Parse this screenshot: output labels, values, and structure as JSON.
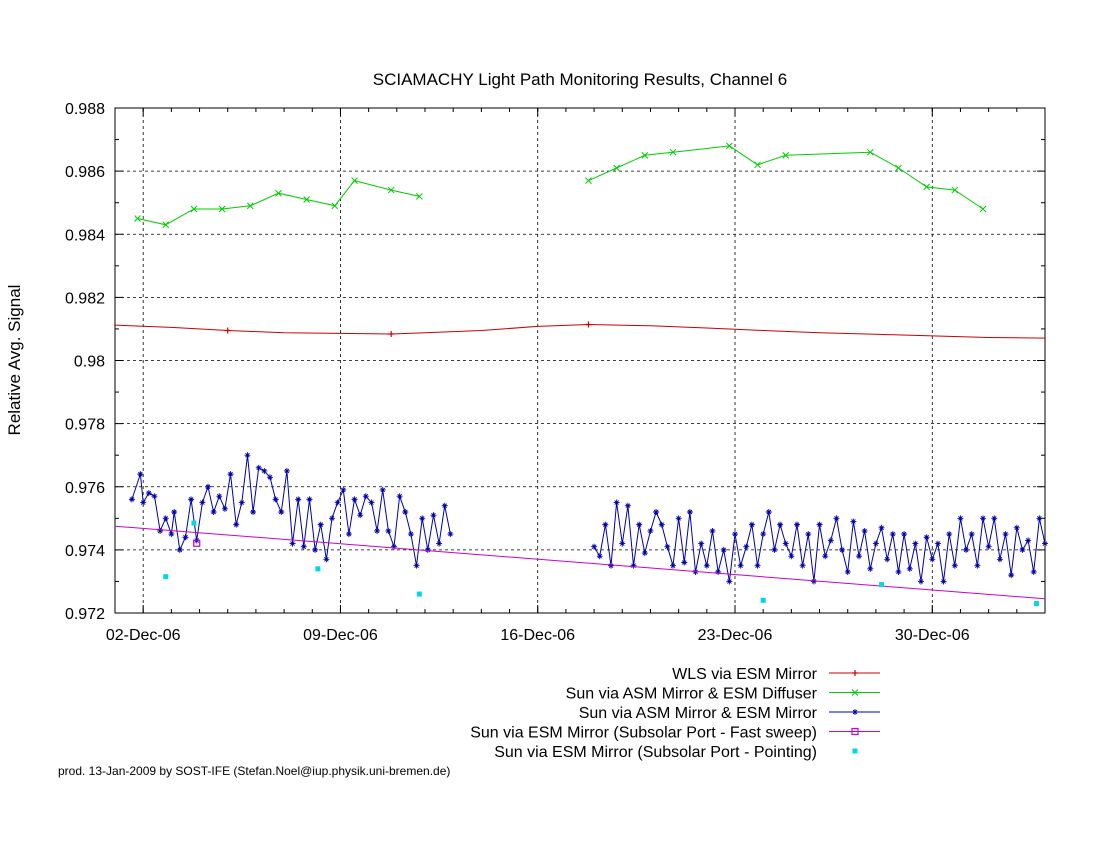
{
  "chart_data": {
    "type": "line",
    "title": "SCIAMACHY Light Path Monitoring Results, Channel 6",
    "xlabel": "",
    "ylabel": "Relative Avg. Signal",
    "x_range_days": [
      0,
      33
    ],
    "x_ticks": [
      {
        "day": 1,
        "label": "02-Dec-06"
      },
      {
        "day": 8,
        "label": "09-Dec-06"
      },
      {
        "day": 15,
        "label": "16-Dec-06"
      },
      {
        "day": 22,
        "label": "23-Dec-06"
      },
      {
        "day": 29,
        "label": "30-Dec-06"
      }
    ],
    "ylim": [
      0.972,
      0.988
    ],
    "y_ticks": [
      "0.972",
      "0.974",
      "0.976",
      "0.978",
      "0.98",
      "0.982",
      "0.984",
      "0.986",
      "0.988"
    ],
    "y_tick_values": [
      0.972,
      0.974,
      0.976,
      0.978,
      0.98,
      0.982,
      0.984,
      0.986,
      0.988
    ],
    "grid": true,
    "legend_position": "below-right",
    "series": [
      {
        "name": "WLS via ESM Mirror",
        "color": "#cc0000",
        "marker": "plus",
        "style": "line",
        "points": [
          [
            0,
            0.98112
          ],
          [
            2,
            0.98105
          ],
          [
            4,
            0.98095
          ],
          [
            6,
            0.98088
          ],
          [
            8,
            0.98086
          ],
          [
            9.8,
            0.98084
          ],
          [
            11,
            0.98088
          ],
          [
            13,
            0.98095
          ],
          [
            15,
            0.98108
          ],
          [
            16.8,
            0.98114
          ],
          [
            19,
            0.9811
          ],
          [
            21,
            0.98103
          ],
          [
            23,
            0.98095
          ],
          [
            25,
            0.98088
          ],
          [
            27,
            0.98083
          ],
          [
            29,
            0.98078
          ],
          [
            31,
            0.98073
          ],
          [
            33,
            0.98071
          ]
        ],
        "marker_indices": [
          2,
          5,
          9
        ]
      },
      {
        "name": "Sun via ASM Mirror & ESM Diffuser",
        "color": "#00cc00",
        "marker": "cross",
        "style": "line",
        "segments": [
          [
            [
              0.8,
              0.9845
            ],
            [
              1.8,
              0.9843
            ],
            [
              2.8,
              0.9848
            ],
            [
              3.8,
              0.9848
            ],
            [
              4.8,
              0.9849
            ],
            [
              5.8,
              0.9853
            ],
            [
              6.8,
              0.9851
            ],
            [
              7.8,
              0.9849
            ],
            [
              8.5,
              0.9857
            ],
            [
              9.8,
              0.9854
            ],
            [
              10.8,
              0.9852
            ]
          ],
          [
            [
              16.8,
              0.9857
            ],
            [
              17.8,
              0.9861
            ],
            [
              18.8,
              0.9865
            ],
            [
              19.8,
              0.9866
            ],
            [
              21.8,
              0.9868
            ],
            [
              22.8,
              0.9862
            ],
            [
              23.8,
              0.9865
            ],
            [
              26.8,
              0.9866
            ],
            [
              27.8,
              0.9861
            ],
            [
              28.8,
              0.9855
            ],
            [
              29.8,
              0.9854
            ],
            [
              30.8,
              0.9848
            ]
          ]
        ]
      },
      {
        "name": "Sun via ASM Mirror & ESM Mirror",
        "color": "#0000aa",
        "marker": "star",
        "style": "line",
        "segments": [
          [
            [
              0.6,
              0.9756
            ],
            [
              0.9,
              0.9764
            ],
            [
              1.0,
              0.9755
            ],
            [
              1.2,
              0.9758
            ],
            [
              1.4,
              0.9757
            ],
            [
              1.6,
              0.9746
            ],
            [
              1.8,
              0.975
            ],
            [
              2.0,
              0.9745
            ],
            [
              2.1,
              0.9752
            ],
            [
              2.3,
              0.974
            ],
            [
              2.5,
              0.9744
            ],
            [
              2.7,
              0.9756
            ],
            [
              2.9,
              0.9743
            ],
            [
              3.1,
              0.9755
            ],
            [
              3.3,
              0.976
            ],
            [
              3.5,
              0.9752
            ],
            [
              3.7,
              0.9757
            ],
            [
              3.9,
              0.9753
            ],
            [
              4.1,
              0.9764
            ],
            [
              4.3,
              0.9748
            ],
            [
              4.5,
              0.9755
            ],
            [
              4.7,
              0.977
            ],
            [
              4.9,
              0.9752
            ],
            [
              5.1,
              0.9766
            ],
            [
              5.3,
              0.9765
            ],
            [
              5.5,
              0.9763
            ],
            [
              5.7,
              0.9756
            ],
            [
              5.9,
              0.9752
            ],
            [
              6.1,
              0.9765
            ],
            [
              6.3,
              0.9742
            ],
            [
              6.5,
              0.9756
            ],
            [
              6.7,
              0.9741
            ],
            [
              6.9,
              0.9756
            ],
            [
              7.1,
              0.974
            ],
            [
              7.3,
              0.9748
            ],
            [
              7.5,
              0.9737
            ],
            [
              7.7,
              0.975
            ],
            [
              7.9,
              0.9755
            ],
            [
              8.1,
              0.9759
            ],
            [
              8.3,
              0.9745
            ],
            [
              8.5,
              0.9756
            ],
            [
              8.7,
              0.9751
            ],
            [
              8.9,
              0.9757
            ],
            [
              9.1,
              0.9755
            ],
            [
              9.3,
              0.9746
            ],
            [
              9.5,
              0.9759
            ],
            [
              9.7,
              0.9746
            ],
            [
              9.9,
              0.9741
            ],
            [
              10.1,
              0.9757
            ],
            [
              10.3,
              0.9752
            ],
            [
              10.5,
              0.9745
            ],
            [
              10.7,
              0.9735
            ],
            [
              10.9,
              0.975
            ],
            [
              11.1,
              0.974
            ],
            [
              11.3,
              0.9751
            ],
            [
              11.5,
              0.9742
            ],
            [
              11.7,
              0.9754
            ],
            [
              11.9,
              0.9745
            ]
          ],
          [
            [
              17.0,
              0.9741
            ],
            [
              17.2,
              0.9738
            ],
            [
              17.4,
              0.9748
            ],
            [
              17.6,
              0.9735
            ],
            [
              17.8,
              0.9755
            ],
            [
              18.0,
              0.9742
            ],
            [
              18.2,
              0.9754
            ],
            [
              18.4,
              0.9735
            ],
            [
              18.6,
              0.9748
            ],
            [
              18.8,
              0.9739
            ],
            [
              19.0,
              0.9746
            ],
            [
              19.2,
              0.9752
            ],
            [
              19.4,
              0.9748
            ],
            [
              19.6,
              0.9741
            ],
            [
              19.8,
              0.9735
            ],
            [
              20.0,
              0.975
            ],
            [
              20.2,
              0.9736
            ],
            [
              20.4,
              0.9752
            ],
            [
              20.6,
              0.9733
            ],
            [
              20.8,
              0.9742
            ],
            [
              21.0,
              0.9735
            ],
            [
              21.2,
              0.9746
            ],
            [
              21.4,
              0.9733
            ],
            [
              21.6,
              0.974
            ],
            [
              21.8,
              0.973
            ],
            [
              22.0,
              0.9745
            ],
            [
              22.2,
              0.9735
            ],
            [
              22.4,
              0.9741
            ],
            [
              22.6,
              0.9748
            ],
            [
              22.8,
              0.9735
            ],
            [
              23.0,
              0.9745
            ],
            [
              23.2,
              0.9752
            ],
            [
              23.4,
              0.974
            ],
            [
              23.6,
              0.9748
            ],
            [
              23.8,
              0.9742
            ],
            [
              24.0,
              0.9738
            ],
            [
              24.2,
              0.9748
            ],
            [
              24.4,
              0.9735
            ],
            [
              24.6,
              0.9745
            ],
            [
              24.8,
              0.973
            ],
            [
              25.0,
              0.9748
            ],
            [
              25.2,
              0.9738
            ],
            [
              25.4,
              0.9743
            ],
            [
              25.6,
              0.975
            ],
            [
              25.8,
              0.974
            ],
            [
              26.0,
              0.9733
            ],
            [
              26.2,
              0.9749
            ],
            [
              26.4,
              0.9738
            ],
            [
              26.6,
              0.9746
            ],
            [
              26.8,
              0.9734
            ],
            [
              27.0,
              0.9742
            ],
            [
              27.2,
              0.9747
            ],
            [
              27.4,
              0.9737
            ],
            [
              27.6,
              0.9745
            ],
            [
              27.8,
              0.9733
            ],
            [
              28.0,
              0.9745
            ],
            [
              28.2,
              0.9734
            ],
            [
              28.4,
              0.9742
            ],
            [
              28.6,
              0.973
            ],
            [
              28.8,
              0.9744
            ],
            [
              29.0,
              0.9737
            ],
            [
              29.2,
              0.9742
            ],
            [
              29.4,
              0.973
            ],
            [
              29.6,
              0.9745
            ],
            [
              29.8,
              0.9735
            ],
            [
              30.0,
              0.975
            ],
            [
              30.2,
              0.974
            ],
            [
              30.4,
              0.9745
            ],
            [
              30.6,
              0.9735
            ],
            [
              30.8,
              0.975
            ],
            [
              31.0,
              0.9741
            ],
            [
              31.2,
              0.975
            ],
            [
              31.4,
              0.9737
            ],
            [
              31.6,
              0.9745
            ],
            [
              31.8,
              0.9732
            ],
            [
              32.0,
              0.9747
            ],
            [
              32.2,
              0.974
            ],
            [
              32.4,
              0.9743
            ],
            [
              32.6,
              0.9733
            ],
            [
              32.8,
              0.975
            ],
            [
              33.0,
              0.9742
            ]
          ]
        ]
      },
      {
        "name": "Sun via ESM Mirror (Subsolar Port - Fast sweep)",
        "color": "#cc00cc",
        "marker": "square",
        "style": "line",
        "points": [
          [
            0,
            0.97475
          ],
          [
            33,
            0.97245
          ]
        ],
        "marker_points": [
          [
            2.9,
            0.97421
          ]
        ]
      },
      {
        "name": "Sun via ESM Mirror (Subsolar Port - Pointing)",
        "color": "#00d8e8",
        "marker": "filled-square",
        "style": "points",
        "points": [
          [
            1.8,
            0.97315
          ],
          [
            2.8,
            0.97485
          ],
          [
            7.2,
            0.9734
          ],
          [
            10.8,
            0.9726
          ],
          [
            23.0,
            0.9724
          ],
          [
            27.2,
            0.9729
          ],
          [
            32.7,
            0.9723
          ]
        ]
      }
    ],
    "footer": "prod. 13-Jan-2009 by SOST-IFE (Stefan.Noel@iup.physik.uni-bremen.de)"
  }
}
